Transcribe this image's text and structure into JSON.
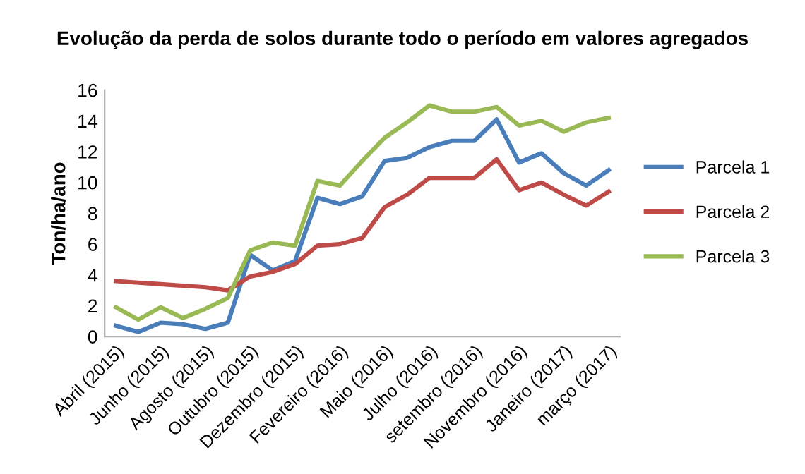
{
  "chart_data": {
    "type": "line",
    "title": "Evolução da perda de solos durante todo o período em valores agregados",
    "ylabel": "Ton/ha/ano",
    "categories": [
      "Abril (2015)",
      null,
      "Junho (2015)",
      null,
      "Agosto (2015)",
      null,
      "Outubro (2015)",
      null,
      "Dezembro (2015)",
      null,
      "Fevereiro (2016)",
      null,
      "Maio (2016)",
      null,
      "Julho (2016)",
      null,
      "setembro (2016)",
      null,
      "Novembro (2016)",
      null,
      "Janeiro (2017)",
      null,
      "março (2017)"
    ],
    "series": [
      {
        "name": "Parcela 1",
        "color": "#4a7ebb",
        "values": [
          0.7,
          0.3,
          0.9,
          0.8,
          0.5,
          0.9,
          5.3,
          4.3,
          4.9,
          9.0,
          8.6,
          9.1,
          11.4,
          11.6,
          12.3,
          12.7,
          12.7,
          14.1,
          11.3,
          11.9,
          10.6,
          9.8,
          10.8
        ]
      },
      {
        "name": "Parcela 2",
        "color": "#be4b48",
        "values": [
          3.6,
          3.5,
          3.4,
          3.3,
          3.2,
          3.0,
          3.9,
          4.2,
          4.7,
          5.9,
          6.0,
          6.4,
          8.4,
          9.2,
          10.3,
          10.3,
          10.3,
          11.5,
          9.5,
          10.0,
          9.2,
          8.5,
          9.4
        ]
      },
      {
        "name": "Parcela 3",
        "color": "#98b954",
        "values": [
          1.9,
          1.1,
          1.9,
          1.2,
          1.8,
          2.5,
          5.6,
          6.1,
          5.9,
          10.1,
          9.8,
          11.4,
          12.9,
          13.9,
          15.0,
          14.6,
          14.6,
          14.9,
          13.7,
          14.0,
          13.3,
          13.9,
          14.2
        ]
      }
    ],
    "ylim": [
      0,
      16
    ],
    "yticks": [
      0,
      2,
      4,
      6,
      8,
      10,
      12,
      14,
      16
    ],
    "grid": false,
    "legend": "right",
    "marker": "none",
    "line_style": "solid"
  }
}
